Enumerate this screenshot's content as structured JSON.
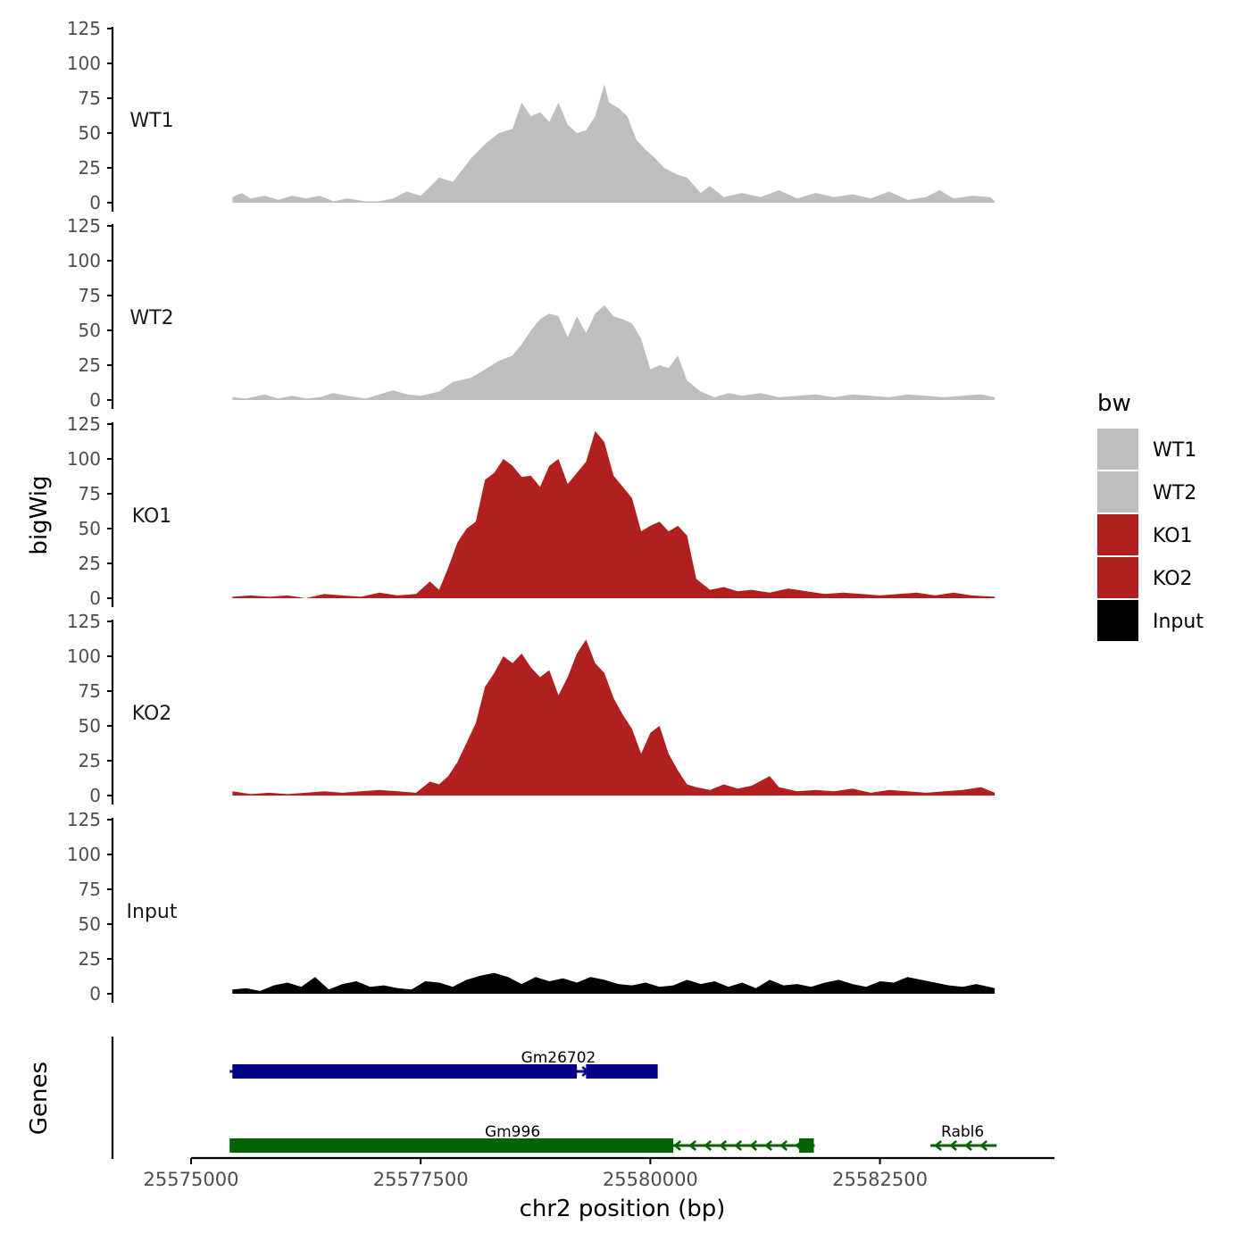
{
  "chart_data": {
    "type": "area",
    "ylabel": "bigWig",
    "genes_label": "Genes",
    "xlabel": "chr2 position (bp)",
    "ylim": [
      0,
      125
    ],
    "y_ticks": [
      "0",
      "25",
      "50",
      "75",
      "100",
      "125"
    ],
    "x_range": [
      25575000,
      25584400
    ],
    "x_ticks": [
      {
        "value": 25575000,
        "label": "25575000"
      },
      {
        "value": 25577500,
        "label": "25577500"
      },
      {
        "value": 25580000,
        "label": "25580000"
      },
      {
        "value": 25582500,
        "label": "25582500"
      }
    ],
    "legend": {
      "title": "bw",
      "items": [
        {
          "label": "WT1",
          "color": "#bebebe"
        },
        {
          "label": "WT2",
          "color": "#bebebe"
        },
        {
          "label": "KO1",
          "color": "#b21f1f"
        },
        {
          "label": "KO2",
          "color": "#b21f1f"
        },
        {
          "label": "Input",
          "color": "#000000"
        }
      ]
    },
    "series": [
      {
        "name": "WT1",
        "color": "#bebebe",
        "x": [
          25575450,
          25575550,
          25575650,
          25575800,
          25575950,
          25576100,
          25576250,
          25576400,
          25576550,
          25576700,
          25576900,
          25577050,
          25577200,
          25577350,
          25577500,
          25577700,
          25577850,
          25578050,
          25578200,
          25578350,
          25578500,
          25578600,
          25578700,
          25578800,
          25578900,
          25579000,
          25579100,
          25579200,
          25579300,
          25579400,
          25579500,
          25579550,
          25579650,
          25579750,
          25579850,
          25579950,
          25580050,
          25580150,
          25580300,
          25580400,
          25580550,
          25580650,
          25580800,
          25581000,
          25581200,
          25581400,
          25581600,
          25581800,
          25582000,
          25582200,
          25582400,
          25582600,
          25582800,
          25583000,
          25583150,
          25583300,
          25583500,
          25583700,
          25583750
        ],
        "values": [
          4,
          7,
          3,
          5,
          2,
          5,
          3,
          5,
          1,
          3,
          1,
          1,
          3,
          8,
          5,
          18,
          15,
          32,
          42,
          50,
          53,
          72,
          62,
          65,
          58,
          72,
          56,
          50,
          52,
          62,
          85,
          72,
          68,
          62,
          45,
          38,
          32,
          25,
          20,
          18,
          7,
          12,
          4,
          7,
          4,
          9,
          3,
          7,
          4,
          6,
          3,
          8,
          2,
          4,
          9,
          3,
          5,
          4,
          1
        ]
      },
      {
        "name": "WT2",
        "color": "#bebebe",
        "x": [
          25575450,
          25575600,
          25575800,
          25575950,
          25576100,
          25576250,
          25576400,
          25576550,
          25576700,
          25576900,
          25577050,
          25577200,
          25577350,
          25577500,
          25577700,
          25577850,
          25578050,
          25578200,
          25578350,
          25578500,
          25578600,
          25578700,
          25578800,
          25578900,
          25579000,
          25579100,
          25579200,
          25579300,
          25579400,
          25579500,
          25579600,
          25579700,
          25579800,
          25579900,
          25580000,
          25580100,
          25580200,
          25580300,
          25580400,
          25580550,
          25580700,
          25580850,
          25581000,
          25581200,
          25581400,
          25581600,
          25581800,
          25582000,
          25582200,
          25582400,
          25582600,
          25582800,
          25583000,
          25583200,
          25583400,
          25583600,
          25583750
        ],
        "values": [
          2,
          1,
          4,
          1,
          3,
          1,
          2,
          5,
          3,
          1,
          4,
          7,
          4,
          3,
          6,
          13,
          16,
          22,
          28,
          32,
          40,
          50,
          58,
          62,
          60,
          45,
          60,
          48,
          62,
          68,
          60,
          58,
          55,
          44,
          22,
          25,
          23,
          32,
          14,
          6,
          2,
          5,
          3,
          5,
          2,
          3,
          4,
          2,
          4,
          3,
          2,
          4,
          3,
          2,
          3,
          4,
          2
        ]
      },
      {
        "name": "KO1",
        "color": "#b21f1f",
        "x": [
          25575450,
          25575650,
          25575850,
          25576050,
          25576250,
          25576450,
          25576650,
          25576850,
          25577050,
          25577250,
          25577450,
          25577600,
          25577700,
          25577800,
          25577900,
          25578000,
          25578100,
          25578200,
          25578300,
          25578400,
          25578500,
          25578600,
          25578700,
          25578800,
          25578900,
          25579000,
          25579100,
          25579200,
          25579300,
          25579400,
          25579500,
          25579600,
          25579700,
          25579800,
          25579900,
          25580000,
          25580100,
          25580200,
          25580300,
          25580400,
          25580500,
          25580650,
          25580800,
          25580950,
          25581100,
          25581300,
          25581500,
          25581700,
          25581900,
          25582100,
          25582300,
          25582500,
          25582700,
          25582900,
          25583100,
          25583300,
          25583500,
          25583750
        ],
        "values": [
          1,
          2,
          1,
          2,
          0,
          3,
          2,
          1,
          4,
          2,
          3,
          12,
          6,
          22,
          40,
          50,
          55,
          85,
          90,
          100,
          95,
          87,
          88,
          80,
          95,
          100,
          82,
          90,
          98,
          120,
          112,
          88,
          80,
          72,
          48,
          52,
          55,
          48,
          52,
          45,
          14,
          6,
          8,
          5,
          6,
          4,
          7,
          5,
          3,
          4,
          3,
          2,
          3,
          4,
          2,
          4,
          2,
          1
        ]
      },
      {
        "name": "KO2",
        "color": "#b21f1f",
        "x": [
          25575450,
          25575650,
          25575850,
          25576050,
          25576250,
          25576450,
          25576650,
          25576850,
          25577050,
          25577250,
          25577450,
          25577600,
          25577700,
          25577800,
          25577900,
          25578000,
          25578100,
          25578200,
          25578300,
          25578400,
          25578500,
          25578600,
          25578700,
          25578800,
          25578900,
          25579000,
          25579100,
          25579200,
          25579300,
          25579400,
          25579500,
          25579600,
          25579700,
          25579800,
          25579900,
          25580000,
          25580100,
          25580200,
          25580300,
          25580400,
          25580500,
          25580650,
          25580800,
          25580950,
          25581100,
          25581300,
          25581400,
          25581600,
          25581800,
          25582000,
          25582200,
          25582400,
          25582600,
          25582800,
          25583000,
          25583200,
          25583400,
          25583600,
          25583750
        ],
        "values": [
          3,
          1,
          2,
          1,
          2,
          3,
          2,
          3,
          4,
          3,
          2,
          10,
          8,
          14,
          24,
          38,
          52,
          78,
          88,
          100,
          95,
          102,
          92,
          85,
          90,
          72,
          85,
          102,
          112,
          95,
          88,
          70,
          58,
          48,
          30,
          45,
          50,
          30,
          18,
          8,
          6,
          4,
          8,
          5,
          7,
          14,
          6,
          3,
          4,
          3,
          5,
          2,
          4,
          3,
          2,
          3,
          4,
          6,
          2
        ]
      },
      {
        "name": "Input",
        "color": "#000000",
        "x": [
          25575450,
          25575600,
          25575750,
          25575900,
          25576050,
          25576200,
          25576350,
          25576500,
          25576650,
          25576800,
          25576950,
          25577100,
          25577250,
          25577400,
          25577550,
          25577700,
          25577850,
          25578000,
          25578150,
          25578300,
          25578450,
          25578600,
          25578750,
          25578900,
          25579050,
          25579200,
          25579350,
          25579500,
          25579650,
          25579800,
          25579950,
          25580100,
          25580250,
          25580400,
          25580550,
          25580700,
          25580850,
          25581000,
          25581150,
          25581300,
          25581450,
          25581600,
          25581750,
          25581900,
          25582050,
          25582200,
          25582350,
          25582500,
          25582650,
          25582800,
          25582950,
          25583100,
          25583250,
          25583400,
          25583550,
          25583750
        ],
        "values": [
          3,
          4,
          2,
          6,
          8,
          5,
          12,
          3,
          7,
          9,
          5,
          6,
          4,
          3,
          9,
          8,
          5,
          10,
          13,
          15,
          12,
          7,
          12,
          9,
          11,
          8,
          12,
          10,
          7,
          6,
          8,
          5,
          6,
          10,
          7,
          9,
          5,
          8,
          4,
          10,
          6,
          7,
          5,
          8,
          10,
          7,
          5,
          9,
          8,
          12,
          10,
          8,
          6,
          5,
          7,
          4
        ]
      }
    ],
    "genes": [
      {
        "name": "Gm26702",
        "strand": "+",
        "color": "#00008b",
        "start": 25575420,
        "end": 25580080,
        "exons": [
          [
            25575450,
            25579200
          ],
          [
            25579300,
            25580080
          ]
        ],
        "label_pos": 25579000
      },
      {
        "name": "Gm996",
        "strand": "-",
        "color": "#006400",
        "start": 25575420,
        "end": 25581790,
        "exons": [
          [
            25575420,
            25580250
          ],
          [
            25581620,
            25581780
          ]
        ],
        "label_pos": 25578500
      },
      {
        "name": "Rabl6",
        "strand": "-",
        "color": "#006400",
        "start": 25583050,
        "end": 25583770,
        "exons": [],
        "label_pos": 25583400
      }
    ]
  }
}
